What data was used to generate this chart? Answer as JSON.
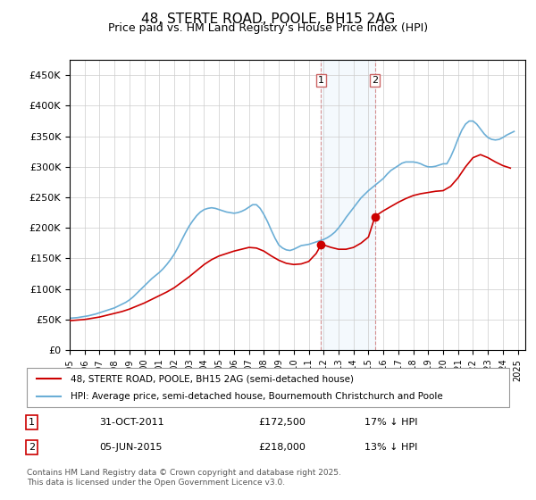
{
  "title": "48, STERTE ROAD, POOLE, BH15 2AG",
  "subtitle": "Price paid vs. HM Land Registry's House Price Index (HPI)",
  "ylabel": "",
  "xlim_start": 1995.0,
  "xlim_end": 2025.5,
  "ylim": [
    0,
    475000
  ],
  "yticks": [
    0,
    50000,
    100000,
    150000,
    200000,
    250000,
    300000,
    350000,
    400000,
    450000
  ],
  "ytick_labels": [
    "£0",
    "£50K",
    "£100K",
    "£150K",
    "£200K",
    "£250K",
    "£300K",
    "£350K",
    "£400K",
    "£450K"
  ],
  "xticks": [
    1995,
    1996,
    1997,
    1998,
    1999,
    2000,
    2001,
    2002,
    2003,
    2004,
    2005,
    2006,
    2007,
    2008,
    2009,
    2010,
    2011,
    2012,
    2013,
    2014,
    2015,
    2016,
    2017,
    2018,
    2019,
    2020,
    2021,
    2022,
    2023,
    2024,
    2025
  ],
  "hpi_color": "#6baed6",
  "price_color": "#cc0000",
  "marker1_x": 2011.83,
  "marker1_y": 172500,
  "marker1_label": "1",
  "marker1_date": "31-OCT-2011",
  "marker1_price": "£172,500",
  "marker1_info": "17% ↓ HPI",
  "marker2_x": 2015.43,
  "marker2_y": 218000,
  "marker2_label": "2",
  "marker2_date": "05-JUN-2015",
  "marker2_price": "£218,000",
  "marker2_info": "13% ↓ HPI",
  "vline1_x": 2011.83,
  "vline2_x": 2015.43,
  "legend_line1": "48, STERTE ROAD, POOLE, BH15 2AG (semi-detached house)",
  "legend_line2": "HPI: Average price, semi-detached house, Bournemouth Christchurch and Poole",
  "footnote": "Contains HM Land Registry data © Crown copyright and database right 2025.\nThis data is licensed under the Open Government Licence v3.0.",
  "hpi_data_x": [
    1995.0,
    1995.25,
    1995.5,
    1995.75,
    1996.0,
    1996.25,
    1996.5,
    1996.75,
    1997.0,
    1997.25,
    1997.5,
    1997.75,
    1998.0,
    1998.25,
    1998.5,
    1998.75,
    1999.0,
    1999.25,
    1999.5,
    1999.75,
    2000.0,
    2000.25,
    2000.5,
    2000.75,
    2001.0,
    2001.25,
    2001.5,
    2001.75,
    2002.0,
    2002.25,
    2002.5,
    2002.75,
    2003.0,
    2003.25,
    2003.5,
    2003.75,
    2004.0,
    2004.25,
    2004.5,
    2004.75,
    2005.0,
    2005.25,
    2005.5,
    2005.75,
    2006.0,
    2006.25,
    2006.5,
    2006.75,
    2007.0,
    2007.25,
    2007.5,
    2007.75,
    2008.0,
    2008.25,
    2008.5,
    2008.75,
    2009.0,
    2009.25,
    2009.5,
    2009.75,
    2010.0,
    2010.25,
    2010.5,
    2010.75,
    2011.0,
    2011.25,
    2011.5,
    2011.75,
    2012.0,
    2012.25,
    2012.5,
    2012.75,
    2013.0,
    2013.25,
    2013.5,
    2013.75,
    2014.0,
    2014.25,
    2014.5,
    2014.75,
    2015.0,
    2015.25,
    2015.5,
    2015.75,
    2016.0,
    2016.25,
    2016.5,
    2016.75,
    2017.0,
    2017.25,
    2017.5,
    2017.75,
    2018.0,
    2018.25,
    2018.5,
    2018.75,
    2019.0,
    2019.25,
    2019.5,
    2019.75,
    2020.0,
    2020.25,
    2020.5,
    2020.75,
    2021.0,
    2021.25,
    2021.5,
    2021.75,
    2022.0,
    2022.25,
    2022.5,
    2022.75,
    2023.0,
    2023.25,
    2023.5,
    2023.75,
    2024.0,
    2024.25,
    2024.5,
    2024.75
  ],
  "hpi_data_y": [
    52000,
    52500,
    53000,
    54000,
    55000,
    56000,
    57500,
    59000,
    61000,
    63000,
    65000,
    67000,
    69000,
    72000,
    75000,
    78000,
    82000,
    87000,
    93000,
    99000,
    105000,
    111000,
    117000,
    122000,
    127000,
    133000,
    140000,
    148000,
    157000,
    168000,
    180000,
    192000,
    203000,
    212000,
    220000,
    226000,
    230000,
    232000,
    233000,
    232000,
    230000,
    228000,
    226000,
    225000,
    224000,
    225000,
    227000,
    230000,
    234000,
    238000,
    238000,
    232000,
    222000,
    210000,
    196000,
    183000,
    172000,
    167000,
    164000,
    163000,
    165000,
    168000,
    171000,
    172000,
    173000,
    175000,
    177000,
    179000,
    181000,
    184000,
    188000,
    193000,
    200000,
    208000,
    217000,
    225000,
    233000,
    241000,
    249000,
    255000,
    261000,
    266000,
    271000,
    276000,
    281000,
    288000,
    294000,
    298000,
    302000,
    306000,
    308000,
    308000,
    308000,
    307000,
    305000,
    302000,
    300000,
    300000,
    301000,
    303000,
    305000,
    305000,
    316000,
    330000,
    346000,
    360000,
    370000,
    375000,
    375000,
    370000,
    362000,
    354000,
    348000,
    345000,
    344000,
    345000,
    348000,
    352000,
    355000,
    358000
  ],
  "price_data_x": [
    1995.0,
    1995.5,
    1996.0,
    1996.5,
    1997.0,
    1997.5,
    1998.0,
    1998.5,
    1999.0,
    1999.5,
    2000.0,
    2000.5,
    2001.0,
    2001.5,
    2002.0,
    2002.5,
    2003.0,
    2003.5,
    2004.0,
    2004.5,
    2005.0,
    2005.5,
    2006.0,
    2006.5,
    2007.0,
    2007.5,
    2008.0,
    2008.5,
    2009.0,
    2009.5,
    2010.0,
    2010.5,
    2011.0,
    2011.5,
    2011.83,
    2012.0,
    2012.5,
    2013.0,
    2013.5,
    2014.0,
    2014.5,
    2015.0,
    2015.43,
    2015.5,
    2016.0,
    2016.5,
    2017.0,
    2017.5,
    2018.0,
    2018.5,
    2019.0,
    2019.5,
    2020.0,
    2020.5,
    2021.0,
    2021.5,
    2022.0,
    2022.5,
    2023.0,
    2023.5,
    2024.0,
    2024.5
  ],
  "price_data_y": [
    48000,
    49000,
    50000,
    52000,
    54000,
    57000,
    60000,
    63000,
    67000,
    72000,
    77000,
    83000,
    89000,
    95000,
    102000,
    111000,
    120000,
    130000,
    140000,
    148000,
    154000,
    158000,
    162000,
    165000,
    168000,
    167000,
    162000,
    154000,
    147000,
    142000,
    140000,
    141000,
    145000,
    158000,
    172500,
    172000,
    168000,
    165000,
    165000,
    168000,
    175000,
    185000,
    218000,
    220000,
    228000,
    235000,
    242000,
    248000,
    253000,
    256000,
    258000,
    260000,
    261000,
    268000,
    282000,
    300000,
    315000,
    320000,
    315000,
    308000,
    302000,
    298000
  ]
}
